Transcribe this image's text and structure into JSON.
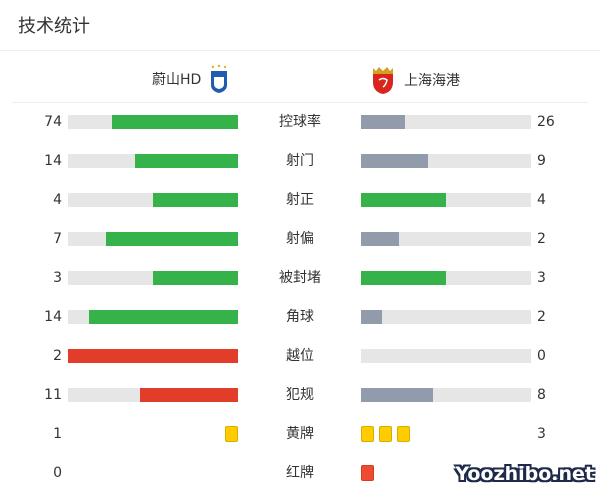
{
  "title": "技术统计",
  "home": {
    "name": "蔚山HD",
    "logo": "shield-logo-blue"
  },
  "away": {
    "name": "上海海港",
    "logo": "shield-logo-red"
  },
  "colors": {
    "win": "#35b34a",
    "lose": "#929bab",
    "negative": "#e23d28",
    "track": "#e6e6e6",
    "yellow": "#ffcc00",
    "red": "#f04a30"
  },
  "stats": [
    {
      "label": "控球率",
      "home": "74",
      "away": "26",
      "h": 74,
      "a": 26,
      "type": "normal"
    },
    {
      "label": "射门",
      "home": "14",
      "away": "9",
      "h": 14,
      "a": 9,
      "type": "normal"
    },
    {
      "label": "射正",
      "home": "4",
      "away": "4",
      "h": 4,
      "a": 4,
      "type": "normal"
    },
    {
      "label": "射偏",
      "home": "7",
      "away": "2",
      "h": 7,
      "a": 2,
      "type": "normal"
    },
    {
      "label": "被封堵",
      "home": "3",
      "away": "3",
      "h": 3,
      "a": 3,
      "type": "normal"
    },
    {
      "label": "角球",
      "home": "14",
      "away": "2",
      "h": 14,
      "a": 2,
      "type": "normal"
    },
    {
      "label": "越位",
      "home": "2",
      "away": "0",
      "h": 2,
      "a": 0,
      "type": "negative"
    },
    {
      "label": "犯规",
      "home": "11",
      "away": "8",
      "h": 11,
      "a": 8,
      "type": "negative"
    },
    {
      "label": "黄牌",
      "home": "1",
      "away": "3",
      "h": 1,
      "a": 3,
      "type": "yellow"
    },
    {
      "label": "红牌",
      "home": "0",
      "away": "",
      "h": 0,
      "a": 1,
      "type": "red"
    }
  ],
  "watermark": "Yoozhibo.net"
}
